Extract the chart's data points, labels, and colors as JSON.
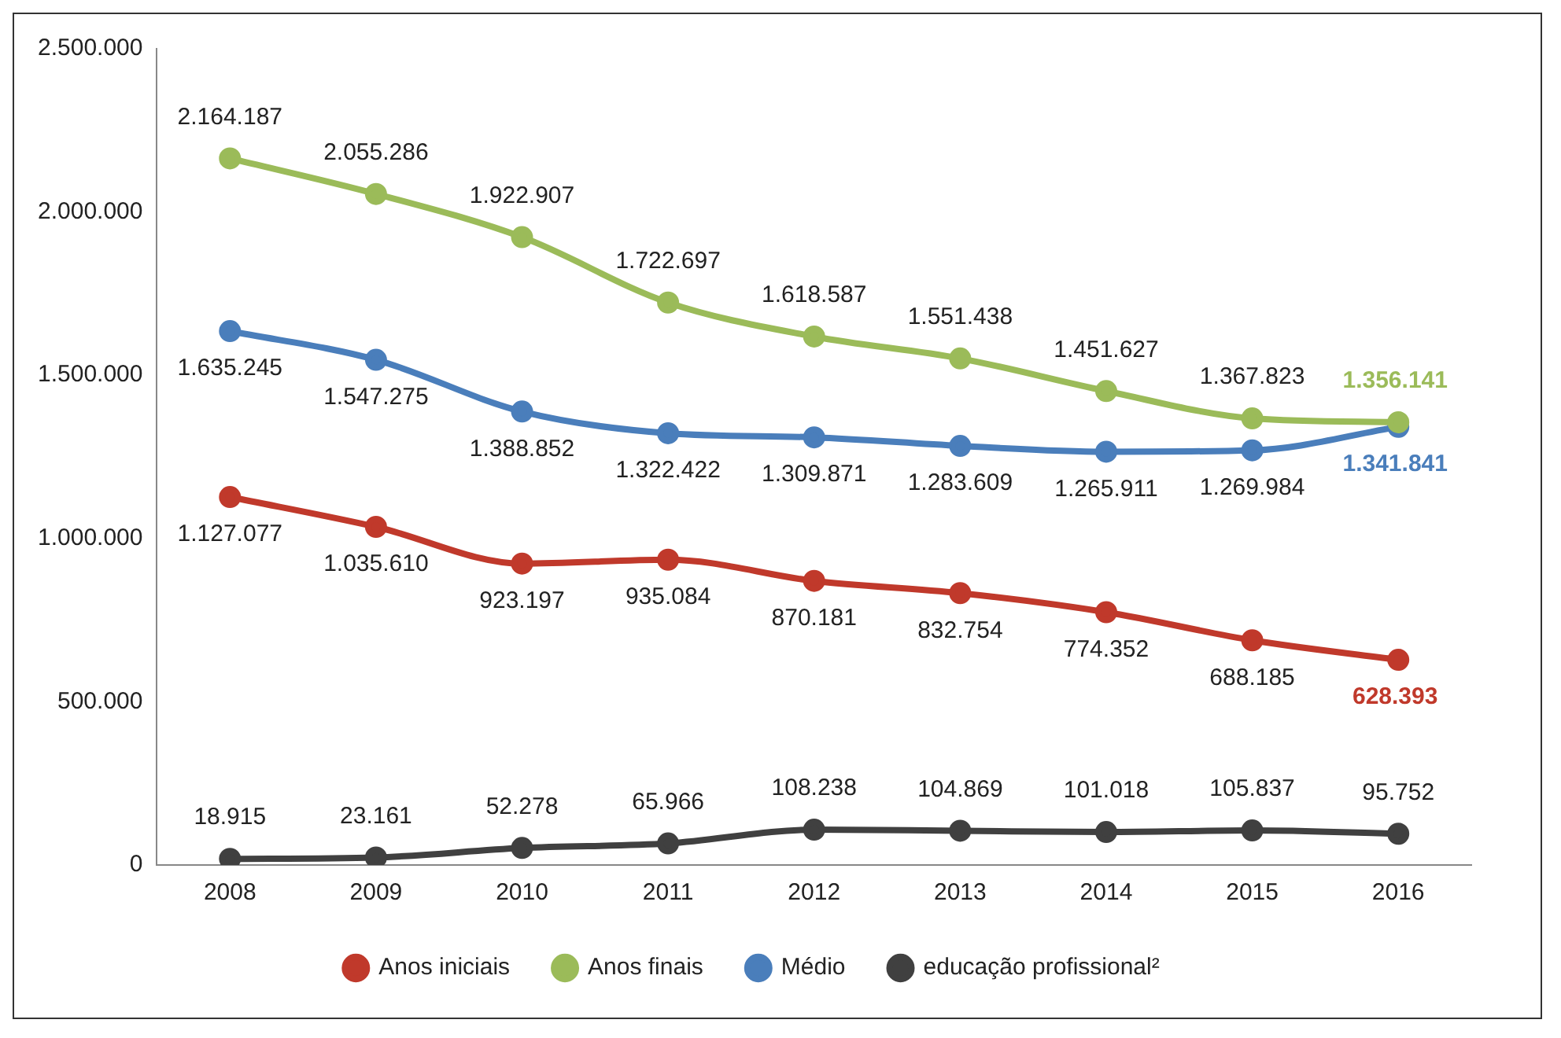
{
  "chart_data": {
    "type": "line",
    "categories": [
      "2008",
      "2009",
      "2010",
      "2011",
      "2012",
      "2013",
      "2014",
      "2015",
      "2016"
    ],
    "series": [
      {
        "name": "Anos iniciais",
        "color": "#c0392b",
        "values": [
          1127077,
          1035610,
          923197,
          935084,
          870181,
          832754,
          774352,
          688185,
          628393
        ],
        "value_labels": [
          "1.127.077",
          "1.035.610",
          "923.197",
          "935.084",
          "870.181",
          "832.754",
          "774.352",
          "688.185",
          "628.393"
        ]
      },
      {
        "name": "Anos finais",
        "color": "#9bbb59",
        "values": [
          2164187,
          2055286,
          1922907,
          1722697,
          1618587,
          1551438,
          1451627,
          1367823,
          1356141
        ],
        "value_labels": [
          "2.164.187",
          "2.055.286",
          "1.922.907",
          "1.722.697",
          "1.618.587",
          "1.551.438",
          "1.451.627",
          "1.367.823",
          "1.356.141"
        ]
      },
      {
        "name": "Médio",
        "color": "#4a7ebb",
        "values": [
          1635245,
          1547275,
          1388852,
          1322422,
          1309871,
          1283609,
          1265911,
          1269984,
          1341841
        ],
        "value_labels": [
          "1.635.245",
          "1.547.275",
          "1.388.852",
          "1.322.422",
          "1.309.871",
          "1.283.609",
          "1.265.911",
          "1.269.984",
          "1.341.841"
        ]
      },
      {
        "name": "educação profissional²",
        "color": "#404040",
        "values": [
          18915,
          23161,
          52278,
          65966,
          108238,
          104869,
          101018,
          105837,
          95752
        ],
        "value_labels": [
          "18.915",
          "23.161",
          "52.278",
          "65.966",
          "108.238",
          "104.869",
          "101.018",
          "105.837",
          "95.752"
        ]
      }
    ],
    "ylim": [
      0,
      2500000
    ],
    "yticks": [
      {
        "value": 0,
        "label": "0"
      },
      {
        "value": 500000,
        "label": "500.000"
      },
      {
        "value": 1000000,
        "label": "1.000.000"
      },
      {
        "value": 1500000,
        "label": "1.500.000"
      },
      {
        "value": 2000000,
        "label": "2.000.000"
      },
      {
        "value": 2500000,
        "label": "2.500.000"
      }
    ],
    "grid": false,
    "legend": "bottom",
    "marker": "circle",
    "line_style": "solid"
  }
}
